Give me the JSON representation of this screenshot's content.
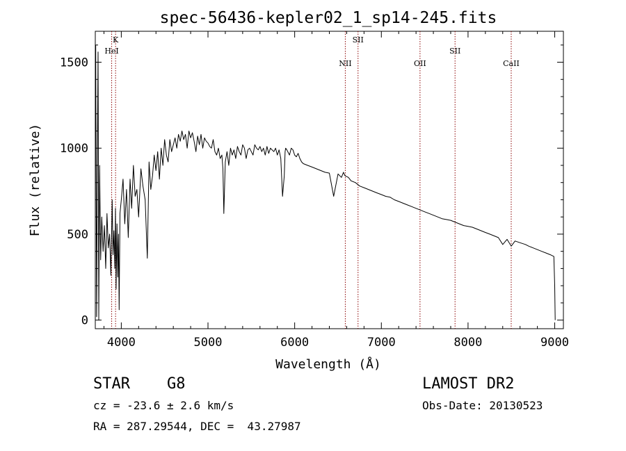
{
  "chart_data": {
    "type": "line",
    "title": "spec-56436-kepler02_1_sp14-245.fits",
    "xlabel": "Wavelength (Å)",
    "ylabel": "Flux (relative)",
    "xlim": [
      3700,
      9100
    ],
    "ylim": [
      -50,
      1680
    ],
    "xticks": [
      4000,
      5000,
      6000,
      7000,
      8000,
      9000
    ],
    "yticks": [
      0,
      500,
      1000,
      1500
    ],
    "grid": false,
    "line_color": "#000000",
    "marker_color": "#8b0000",
    "line_markers": [
      {
        "label": "K",
        "x": 3934,
        "tier": 1
      },
      {
        "label": "HeI",
        "x": 3889,
        "tier": 2
      },
      {
        "label": "NII",
        "x": 6584,
        "tier": 3
      },
      {
        "label": "SII",
        "x": 6731,
        "tier": 1
      },
      {
        "label": "OII",
        "x": 7446,
        "tier": 3
      },
      {
        "label": "SII",
        "x": 7850,
        "tier": 2
      },
      {
        "label": "CaII",
        "x": 8498,
        "tier": 3
      }
    ],
    "series": [
      {
        "x": [
          3705,
          3715,
          3725,
          3732,
          3740,
          3750,
          3762,
          3775,
          3790,
          3805,
          3820,
          3835,
          3850,
          3865,
          3880,
          3895,
          3905,
          3915,
          3925,
          3933,
          3940,
          3950,
          3960,
          3968,
          3975,
          3985,
          4000,
          4020,
          4040,
          4060,
          4080,
          4101,
          4120,
          4140,
          4160,
          4180,
          4200,
          4226,
          4250,
          4275,
          4300,
          4320,
          4340,
          4360,
          4380,
          4400,
          4420,
          4440,
          4460,
          4480,
          4500,
          4520,
          4540,
          4560,
          4580,
          4600,
          4620,
          4640,
          4660,
          4680,
          4700,
          4720,
          4740,
          4760,
          4780,
          4800,
          4820,
          4840,
          4861,
          4880,
          4900,
          4920,
          4940,
          4960,
          4980,
          5000,
          5020,
          5040,
          5060,
          5080,
          5100,
          5120,
          5140,
          5160,
          5172,
          5183,
          5200,
          5220,
          5240,
          5260,
          5280,
          5300,
          5320,
          5340,
          5360,
          5380,
          5400,
          5420,
          5440,
          5460,
          5480,
          5500,
          5520,
          5540,
          5560,
          5580,
          5600,
          5620,
          5640,
          5660,
          5680,
          5700,
          5720,
          5740,
          5760,
          5780,
          5800,
          5820,
          5840,
          5860,
          5880,
          5890,
          5896,
          5910,
          5940,
          5960,
          5980,
          6000,
          6020,
          6040,
          6060,
          6080,
          6100,
          6150,
          6200,
          6250,
          6300,
          6350,
          6400,
          6450,
          6500,
          6540,
          6563,
          6580,
          6620,
          6650,
          6700,
          6750,
          6800,
          6850,
          6900,
          6950,
          7000,
          7050,
          7100,
          7150,
          7200,
          7250,
          7300,
          7350,
          7400,
          7450,
          7500,
          7550,
          7600,
          7650,
          7700,
          7750,
          7800,
          7850,
          7900,
          7950,
          8000,
          8050,
          8100,
          8150,
          8200,
          8250,
          8300,
          8350,
          8400,
          8450,
          8498,
          8542,
          8600,
          8662,
          8700,
          8750,
          8800,
          8850,
          8900,
          8950,
          8990,
          9000,
          9005
        ],
        "y": [
          1600,
          20,
          1000,
          1560,
          0,
          900,
          350,
          600,
          400,
          550,
          300,
          620,
          420,
          500,
          260,
          700,
          380,
          520,
          300,
          650,
          180,
          560,
          250,
          500,
          60,
          620,
          700,
          820,
          560,
          760,
          480,
          820,
          650,
          900,
          720,
          760,
          600,
          880,
          780,
          700,
          360,
          920,
          760,
          840,
          960,
          870,
          980,
          820,
          1000,
          900,
          1050,
          960,
          920,
          1050,
          980,
          1020,
          1060,
          1000,
          1080,
          1040,
          1100,
          1050,
          1080,
          1000,
          1100,
          1060,
          1090,
          1040,
          980,
          1070,
          1020,
          1080,
          1000,
          1060,
          1040,
          1030,
          1010,
          1000,
          1050,
          980,
          960,
          1000,
          940,
          960,
          880,
          620,
          920,
          980,
          900,
          1000,
          960,
          990,
          940,
          1010,
          980,
          960,
          1020,
          1000,
          940,
          990,
          1000,
          980,
          960,
          1020,
          1000,
          990,
          1010,
          980,
          1000,
          960,
          1010,
          970,
          1000,
          990,
          980,
          1000,
          960,
          990,
          940,
          720,
          840,
          980,
          1000,
          990,
          960,
          1000,
          990,
          960,
          950,
          970,
          940,
          920,
          910,
          900,
          890,
          880,
          870,
          860,
          855,
          720,
          850,
          830,
          860,
          840,
          830,
          810,
          800,
          780,
          770,
          760,
          750,
          740,
          730,
          720,
          715,
          700,
          690,
          680,
          670,
          660,
          650,
          640,
          630,
          620,
          610,
          600,
          590,
          585,
          580,
          570,
          560,
          550,
          545,
          540,
          530,
          520,
          510,
          500,
          490,
          480,
          440,
          470,
          430,
          460,
          450,
          440,
          430,
          420,
          410,
          400,
          390,
          380,
          370,
          200,
          0
        ]
      }
    ]
  },
  "info": {
    "object_class": "STAR",
    "subclass": "G8",
    "redshift": "cz = -23.6 ± 2.6 km/s",
    "coords": "RA = 287.29544, DEC =  43.27987",
    "survey": "LAMOST DR2",
    "obs_date": "Obs-Date: 20130523"
  }
}
